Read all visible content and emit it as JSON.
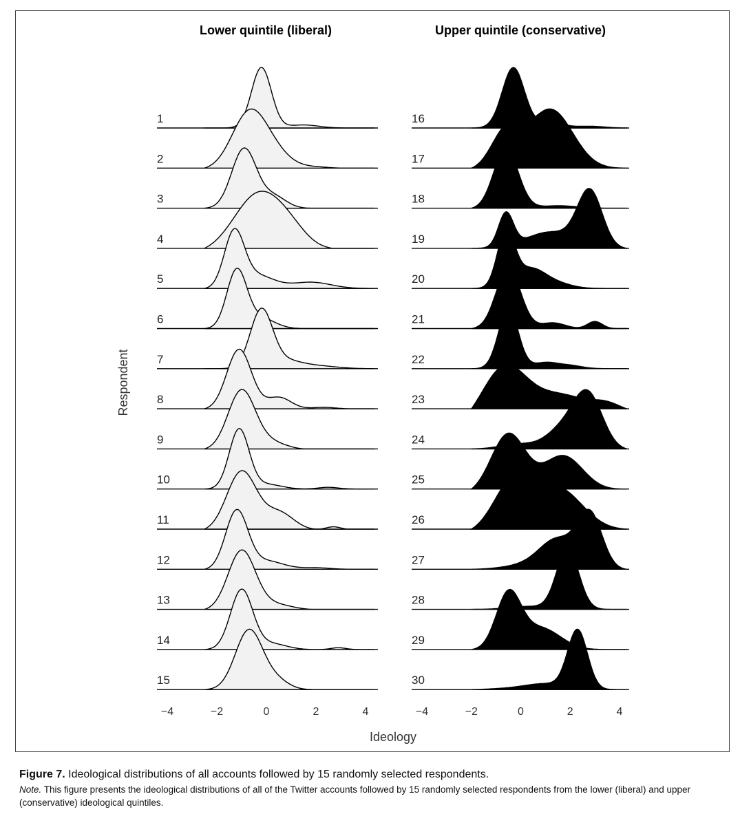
{
  "chart_data": {
    "type": "ridgeline",
    "xlabel": "Ideology",
    "ylabel": "Respondent",
    "xlim": [
      -4,
      4
    ],
    "xticks": [
      "−4",
      "−2",
      "0",
      "2",
      "4"
    ],
    "colors": {
      "liberal_fill": "#f2f2f2",
      "conservative_fill": "#000000",
      "line": "#000000"
    },
    "panels": [
      {
        "title": "Lower quintile (liberal)",
        "x_range": [
          -2.5,
          4.5
        ],
        "respondents": [
          {
            "label": "1",
            "components": [
              [
                1.0,
                -0.2,
                0.4
              ],
              [
                0.05,
                1.5,
                0.6
              ]
            ]
          },
          {
            "label": "2",
            "components": [
              [
                1.0,
                -0.7,
                0.7
              ],
              [
                0.25,
                0.3,
                0.7
              ],
              [
                0.03,
                2.0,
                0.6
              ]
            ]
          },
          {
            "label": "3",
            "components": [
              [
                1.0,
                -0.9,
                0.5
              ],
              [
                0.2,
                0.3,
                0.5
              ]
            ]
          },
          {
            "label": "4",
            "components": [
              [
                1.0,
                -0.3,
                1.0
              ],
              [
                0.2,
                1.0,
                0.7
              ]
            ]
          },
          {
            "label": "5",
            "components": [
              [
                1.0,
                -1.3,
                0.4
              ],
              [
                0.25,
                -0.4,
                0.7
              ],
              [
                0.12,
                1.8,
                0.8
              ]
            ]
          },
          {
            "label": "6",
            "components": [
              [
                1.0,
                -1.2,
                0.4
              ],
              [
                0.2,
                -0.3,
                0.6
              ]
            ]
          },
          {
            "label": "7",
            "components": [
              [
                1.0,
                -0.2,
                0.45
              ],
              [
                0.12,
                0.8,
                0.6
              ],
              [
                0.05,
                2.0,
                0.8
              ]
            ]
          },
          {
            "label": "8",
            "components": [
              [
                1.0,
                -1.1,
                0.5
              ],
              [
                0.2,
                0.5,
                0.5
              ],
              [
                0.03,
                2.3,
                0.5
              ]
            ]
          },
          {
            "label": "9",
            "components": [
              [
                1.0,
                -1.0,
                0.55
              ],
              [
                0.12,
                0.2,
                0.6
              ]
            ]
          },
          {
            "label": "10",
            "components": [
              [
                1.0,
                -1.1,
                0.4
              ],
              [
                0.08,
                0.0,
                0.6
              ],
              [
                0.03,
                2.5,
                0.4
              ]
            ]
          },
          {
            "label": "11",
            "components": [
              [
                1.0,
                -1.0,
                0.6
              ],
              [
                0.3,
                0.5,
                0.6
              ],
              [
                0.05,
                2.7,
                0.3
              ]
            ]
          },
          {
            "label": "12",
            "components": [
              [
                1.0,
                -1.2,
                0.45
              ],
              [
                0.15,
                0.0,
                0.7
              ],
              [
                0.03,
                2.0,
                0.6
              ]
            ]
          },
          {
            "label": "13",
            "components": [
              [
                1.0,
                -1.0,
                0.55
              ],
              [
                0.1,
                0.3,
                0.7
              ]
            ]
          },
          {
            "label": "14",
            "components": [
              [
                1.0,
                -1.0,
                0.45
              ],
              [
                0.1,
                0.2,
                0.6
              ],
              [
                0.03,
                2.9,
                0.3
              ]
            ]
          },
          {
            "label": "15",
            "components": [
              [
                1.0,
                -0.7,
                0.55
              ],
              [
                0.15,
                0.4,
                0.5
              ]
            ]
          }
        ]
      },
      {
        "title": "Upper quintile (conservative)",
        "x_range": [
          -2.0,
          4.3
        ],
        "respondents": [
          {
            "label": "16",
            "components": [
              [
                1.0,
                -0.3,
                0.45
              ],
              [
                0.1,
                1.2,
                0.5
              ],
              [
                0.03,
                2.8,
                0.6
              ]
            ]
          },
          {
            "label": "17",
            "components": [
              [
                0.5,
                -0.6,
                0.6
              ],
              [
                0.8,
                1.2,
                0.9
              ]
            ]
          },
          {
            "label": "18",
            "components": [
              [
                1.0,
                -0.6,
                0.5
              ],
              [
                0.05,
                1.5,
                0.8
              ]
            ]
          },
          {
            "label": "19",
            "components": [
              [
                0.6,
                -0.6,
                0.3
              ],
              [
                0.3,
                1.2,
                1.0
              ],
              [
                1.0,
                2.8,
                0.5
              ]
            ]
          },
          {
            "label": "20",
            "components": [
              [
                1.0,
                -0.6,
                0.35
              ],
              [
                0.35,
                0.4,
                0.6
              ],
              [
                0.08,
                1.5,
                0.6
              ]
            ]
          },
          {
            "label": "21",
            "components": [
              [
                1.0,
                -0.5,
                0.5
              ],
              [
                0.1,
                1.3,
                0.5
              ],
              [
                0.12,
                3.0,
                0.3
              ]
            ]
          },
          {
            "label": "22",
            "components": [
              [
                1.0,
                -0.5,
                0.4
              ],
              [
                0.1,
                1.0,
                0.5
              ],
              [
                0.05,
                2.0,
                0.5
              ]
            ]
          },
          {
            "label": "23",
            "components": [
              [
                1.0,
                -0.7,
                0.9
              ],
              [
                0.45,
                1.5,
                1.2
              ],
              [
                0.15,
                3.5,
                0.6
              ]
            ]
          },
          {
            "label": "24",
            "components": [
              [
                0.1,
                0.0,
                0.8
              ],
              [
                1.0,
                2.7,
                0.6
              ],
              [
                0.3,
                1.6,
                0.6
              ]
            ]
          },
          {
            "label": "25",
            "components": [
              [
                1.0,
                -0.5,
                0.7
              ],
              [
                0.6,
                1.7,
                0.8
              ]
            ]
          },
          {
            "label": "26",
            "components": [
              [
                1.0,
                -0.3,
                0.8
              ],
              [
                0.85,
                1.5,
                1.0
              ]
            ]
          },
          {
            "label": "27",
            "components": [
              [
                0.1,
                0.5,
                1.0
              ],
              [
                0.5,
                1.5,
                0.7
              ],
              [
                1.0,
                2.8,
                0.5
              ]
            ]
          },
          {
            "label": "28",
            "components": [
              [
                1.0,
                1.9,
                0.45
              ],
              [
                0.05,
                0.3,
                0.8
              ]
            ]
          },
          {
            "label": "29",
            "components": [
              [
                1.0,
                -0.5,
                0.5
              ],
              [
                0.4,
                0.8,
                0.8
              ]
            ]
          },
          {
            "label": "30",
            "components": [
              [
                1.0,
                2.3,
                0.4
              ],
              [
                0.1,
                1.0,
                0.8
              ],
              [
                0.02,
                -0.5,
                0.8
              ]
            ]
          }
        ]
      }
    ]
  },
  "caption": {
    "figure_label": "Figure 7.",
    "figure_text": "Ideological distributions of all accounts followed by 15 randomly selected respondents.",
    "note_label": "Note.",
    "note_text": "This figure presents the ideological distributions of all of the Twitter accounts followed by 15 randomly selected respondents from the lower (liberal) and upper (conservative) ideological quintiles."
  }
}
